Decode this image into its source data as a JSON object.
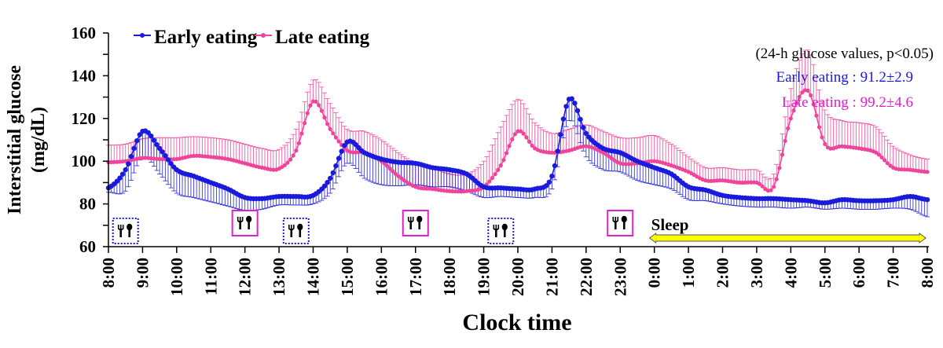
{
  "chart_data": {
    "type": "line",
    "title": "",
    "xlabel": "Clock time",
    "ylabel": "Interstitial glucose (mg/dL)",
    "ylabel_lines": [
      "Interstitial glucose",
      "(mg/dL)"
    ],
    "ylim": [
      60,
      160
    ],
    "yticks": [
      60,
      80,
      100,
      120,
      140,
      160
    ],
    "grid": false,
    "legend_position": "top-left",
    "x_tick_labels": [
      "8:00",
      "9:00",
      "10:00",
      "11:00",
      "12:00",
      "13:00",
      "14:00",
      "15:00",
      "16:00",
      "17:00",
      "18:00",
      "19:00",
      "20:00",
      "21:00",
      "22:00",
      "23:00",
      "0:00",
      "1:00",
      "2:00",
      "3:00",
      "4:00",
      "5:00",
      "6:00",
      "7:00",
      "8:00"
    ],
    "x_hours_from_start": [
      0,
      0.5,
      1,
      1.5,
      2,
      2.5,
      3,
      3.5,
      4,
      4.5,
      5,
      5.5,
      6,
      6.5,
      7,
      7.5,
      8,
      8.5,
      9,
      9.5,
      10,
      10.5,
      11,
      11.5,
      12,
      12.5,
      13,
      13.5,
      14,
      14.5,
      15,
      15.5,
      16,
      16.5,
      17,
      17.5,
      18,
      18.5,
      19,
      19.5,
      20,
      20.5,
      21,
      21.5,
      22,
      22.5,
      23,
      23.5,
      24
    ],
    "series": [
      {
        "name": "Early eating",
        "color": "#1a1adc",
        "errorbar_direction": "down",
        "values": [
          87.5,
          96,
          114,
          106,
          96,
          93,
          90,
          87,
          83,
          82.5,
          83.5,
          83.5,
          84,
          92,
          109,
          104,
          101,
          99.5,
          99,
          97,
          96,
          94,
          88,
          87.5,
          87,
          87,
          93,
          129,
          113,
          106,
          104,
          100,
          97,
          94,
          88,
          86.5,
          84,
          83,
          82.5,
          82.5,
          82,
          81.5,
          80.5,
          82,
          81.5,
          81.5,
          82,
          83.5,
          82
        ],
        "sd": [
          2,
          10,
          12,
          12,
          11,
          10,
          9,
          8,
          6,
          5,
          4,
          4,
          4,
          7,
          10,
          12,
          12,
          11,
          10,
          9,
          8,
          8,
          5,
          4,
          4,
          4,
          6,
          10,
          11,
          10,
          9,
          9,
          8,
          7,
          6,
          5,
          4,
          4,
          4,
          4,
          4,
          3,
          3,
          4,
          4,
          4,
          4,
          6,
          8
        ]
      },
      {
        "name": "Late eating",
        "color": "#f0449a",
        "errorbar_direction": "up",
        "values": [
          99.5,
          100,
          101.5,
          101,
          101,
          102.5,
          102,
          101,
          99,
          97,
          96.5,
          105,
          128,
          115,
          105,
          104,
          100,
          93,
          88,
          87,
          86,
          86,
          88,
          98,
          114,
          106,
          104,
          105,
          107,
          104,
          99,
          99,
          100,
          98,
          95,
          91,
          91,
          90,
          90,
          88,
          120,
          133,
          108,
          107,
          106,
          104,
          97,
          96,
          95
        ],
        "sd": [
          8,
          8,
          9,
          10,
          10,
          9,
          9,
          9,
          9,
          9,
          9,
          10,
          10,
          12,
          10,
          10,
          10,
          11,
          11,
          10,
          8,
          8,
          12,
          18,
          15,
          12,
          9,
          10,
          10,
          10,
          12,
          12,
          12,
          10,
          7,
          6,
          6,
          6,
          6,
          6,
          14,
          19,
          16,
          12,
          12,
          12,
          10,
          7,
          6
        ]
      }
    ],
    "sleep_period": {
      "label": "Sleep",
      "from_hour": 16,
      "to_hour": 24,
      "color": "#ffff00"
    },
    "meals": [
      {
        "group": "Early eating",
        "hour": 0.5,
        "style": "dotted-box"
      },
      {
        "group": "Late eating",
        "hour": 4.0,
        "style": "solid-box"
      },
      {
        "group": "Early eating",
        "hour": 5.5,
        "style": "dotted-box"
      },
      {
        "group": "Late eating",
        "hour": 9.0,
        "style": "solid-box"
      },
      {
        "group": "Early eating",
        "hour": 11.5,
        "style": "dotted-box"
      },
      {
        "group": "Late eating",
        "hour": 15.0,
        "style": "solid-box"
      }
    ],
    "annotation": {
      "header": "(24-h glucose values, p<0.05)",
      "early_line": "Early eating : 91.2±2.9",
      "late_line": "Late eating : 99.2±4.6",
      "early_mean": 91.2,
      "early_sd": 2.9,
      "late_mean": 99.2,
      "late_sd": 4.6
    }
  }
}
